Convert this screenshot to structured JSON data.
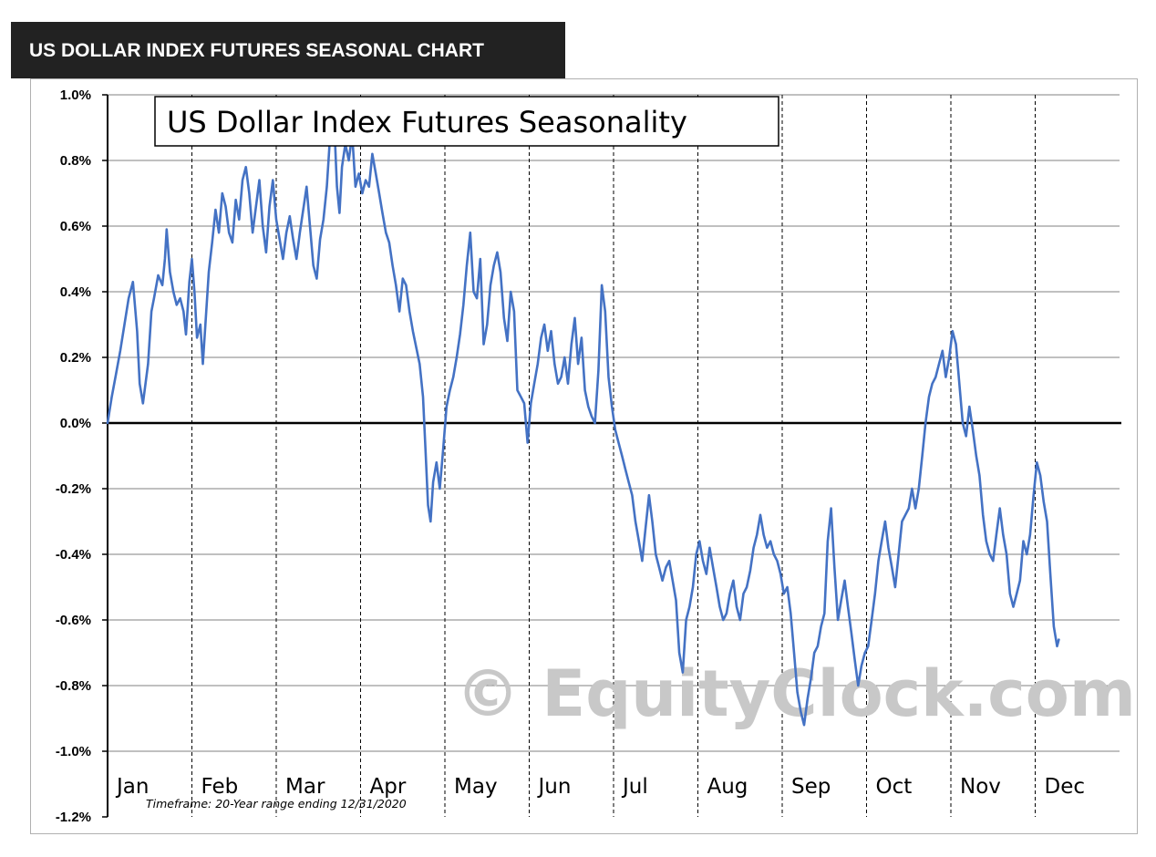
{
  "header": {
    "title": "US DOLLAR INDEX FUTURES SEASONAL CHART"
  },
  "watermark": "© EquityClock.com",
  "colors": {
    "line": "#4472c4",
    "grid": "#808080",
    "header_bg": "#222222",
    "watermark": "#c8c8c8"
  },
  "chart_data": {
    "type": "line",
    "title": "US Dollar Index Futures Seasonality",
    "footnote": "Timeframe:   20-Year range  ending  12/31/2020",
    "xlabel": "",
    "ylabel": "",
    "ylim": [
      -1.2,
      1.0
    ],
    "y_ticks": [
      1.0,
      0.8,
      0.6,
      0.4,
      0.2,
      0.0,
      -0.2,
      -0.4,
      -0.6,
      -0.8,
      -1.0,
      -1.2
    ],
    "y_tick_labels": [
      "1.0%",
      "0.8%",
      "0.6%",
      "0.4%",
      "0.2%",
      "0.0%",
      "-0.2%",
      "-0.4%",
      "-0.6%",
      "-0.8%",
      "-1.0%",
      "-1.2%"
    ],
    "months": [
      "Jan",
      "Feb",
      "Mar",
      "Apr",
      "May",
      "Jun",
      "Jul",
      "Aug",
      "Sep",
      "Oct",
      "Nov",
      "Dec"
    ],
    "x_unit": "month (0 = start of Jan, 12 = end of Dec)",
    "grid": true,
    "series": [
      {
        "values": [
          [
            0.0,
            0.0
          ],
          [
            0.05,
            0.08
          ],
          [
            0.1,
            0.15
          ],
          [
            0.15,
            0.22
          ],
          [
            0.2,
            0.3
          ],
          [
            0.25,
            0.38
          ],
          [
            0.3,
            0.43
          ],
          [
            0.35,
            0.28
          ],
          [
            0.38,
            0.12
          ],
          [
            0.42,
            0.06
          ],
          [
            0.48,
            0.18
          ],
          [
            0.52,
            0.34
          ],
          [
            0.55,
            0.38
          ],
          [
            0.6,
            0.45
          ],
          [
            0.65,
            0.42
          ],
          [
            0.68,
            0.5
          ],
          [
            0.7,
            0.59
          ],
          [
            0.74,
            0.46
          ],
          [
            0.78,
            0.4
          ],
          [
            0.82,
            0.36
          ],
          [
            0.86,
            0.38
          ],
          [
            0.9,
            0.34
          ],
          [
            0.93,
            0.27
          ],
          [
            0.97,
            0.43
          ],
          [
            1.0,
            0.5
          ],
          [
            1.03,
            0.4
          ],
          [
            1.06,
            0.26
          ],
          [
            1.1,
            0.3
          ],
          [
            1.13,
            0.18
          ],
          [
            1.16,
            0.3
          ],
          [
            1.2,
            0.46
          ],
          [
            1.24,
            0.55
          ],
          [
            1.28,
            0.65
          ],
          [
            1.32,
            0.58
          ],
          [
            1.36,
            0.7
          ],
          [
            1.4,
            0.66
          ],
          [
            1.44,
            0.58
          ],
          [
            1.48,
            0.55
          ],
          [
            1.52,
            0.68
          ],
          [
            1.56,
            0.62
          ],
          [
            1.6,
            0.74
          ],
          [
            1.64,
            0.78
          ],
          [
            1.68,
            0.7
          ],
          [
            1.72,
            0.58
          ],
          [
            1.76,
            0.66
          ],
          [
            1.8,
            0.74
          ],
          [
            1.84,
            0.6
          ],
          [
            1.88,
            0.52
          ],
          [
            1.92,
            0.66
          ],
          [
            1.96,
            0.74
          ],
          [
            2.0,
            0.62
          ],
          [
            2.04,
            0.56
          ],
          [
            2.08,
            0.5
          ],
          [
            2.12,
            0.58
          ],
          [
            2.16,
            0.63
          ],
          [
            2.2,
            0.56
          ],
          [
            2.24,
            0.5
          ],
          [
            2.28,
            0.58
          ],
          [
            2.32,
            0.65
          ],
          [
            2.36,
            0.72
          ],
          [
            2.4,
            0.6
          ],
          [
            2.44,
            0.48
          ],
          [
            2.48,
            0.44
          ],
          [
            2.52,
            0.56
          ],
          [
            2.56,
            0.62
          ],
          [
            2.6,
            0.72
          ],
          [
            2.64,
            0.88
          ],
          [
            2.68,
            0.96
          ],
          [
            2.72,
            0.72
          ],
          [
            2.75,
            0.64
          ],
          [
            2.78,
            0.78
          ],
          [
            2.82,
            0.85
          ],
          [
            2.86,
            0.8
          ],
          [
            2.9,
            0.88
          ],
          [
            2.94,
            0.72
          ],
          [
            2.98,
            0.76
          ],
          [
            3.02,
            0.7
          ],
          [
            3.06,
            0.74
          ],
          [
            3.1,
            0.72
          ],
          [
            3.14,
            0.82
          ],
          [
            3.18,
            0.76
          ],
          [
            3.22,
            0.7
          ],
          [
            3.26,
            0.64
          ],
          [
            3.3,
            0.58
          ],
          [
            3.34,
            0.55
          ],
          [
            3.38,
            0.48
          ],
          [
            3.42,
            0.42
          ],
          [
            3.46,
            0.34
          ],
          [
            3.5,
            0.44
          ],
          [
            3.54,
            0.42
          ],
          [
            3.58,
            0.34
          ],
          [
            3.62,
            0.28
          ],
          [
            3.66,
            0.23
          ],
          [
            3.7,
            0.18
          ],
          [
            3.74,
            0.08
          ],
          [
            3.77,
            -0.08
          ],
          [
            3.8,
            -0.25
          ],
          [
            3.83,
            -0.3
          ],
          [
            3.86,
            -0.18
          ],
          [
            3.9,
            -0.12
          ],
          [
            3.94,
            -0.2
          ],
          [
            3.98,
            -0.08
          ],
          [
            4.02,
            0.05
          ],
          [
            4.06,
            0.1
          ],
          [
            4.1,
            0.14
          ],
          [
            4.14,
            0.2
          ],
          [
            4.18,
            0.27
          ],
          [
            4.22,
            0.36
          ],
          [
            4.26,
            0.48
          ],
          [
            4.3,
            0.58
          ],
          [
            4.34,
            0.4
          ],
          [
            4.38,
            0.38
          ],
          [
            4.42,
            0.5
          ],
          [
            4.46,
            0.24
          ],
          [
            4.5,
            0.3
          ],
          [
            4.54,
            0.42
          ],
          [
            4.58,
            0.48
          ],
          [
            4.62,
            0.52
          ],
          [
            4.66,
            0.46
          ],
          [
            4.7,
            0.32
          ],
          [
            4.74,
            0.25
          ],
          [
            4.78,
            0.4
          ],
          [
            4.82,
            0.34
          ],
          [
            4.86,
            0.1
          ],
          [
            4.9,
            0.08
          ],
          [
            4.94,
            0.06
          ],
          [
            4.98,
            -0.06
          ],
          [
            5.02,
            0.06
          ],
          [
            5.06,
            0.12
          ],
          [
            5.1,
            0.18
          ],
          [
            5.14,
            0.26
          ],
          [
            5.18,
            0.3
          ],
          [
            5.22,
            0.22
          ],
          [
            5.26,
            0.28
          ],
          [
            5.3,
            0.18
          ],
          [
            5.34,
            0.12
          ],
          [
            5.38,
            0.14
          ],
          [
            5.42,
            0.2
          ],
          [
            5.46,
            0.12
          ],
          [
            5.5,
            0.24
          ],
          [
            5.54,
            0.32
          ],
          [
            5.58,
            0.18
          ],
          [
            5.62,
            0.26
          ],
          [
            5.66,
            0.1
          ],
          [
            5.7,
            0.05
          ],
          [
            5.74,
            0.02
          ],
          [
            5.78,
            0.0
          ],
          [
            5.82,
            0.16
          ],
          [
            5.86,
            0.42
          ],
          [
            5.9,
            0.34
          ],
          [
            5.94,
            0.14
          ],
          [
            5.98,
            0.05
          ],
          [
            6.02,
            -0.02
          ],
          [
            6.06,
            -0.06
          ],
          [
            6.1,
            -0.1
          ],
          [
            6.14,
            -0.14
          ],
          [
            6.18,
            -0.18
          ],
          [
            6.22,
            -0.22
          ],
          [
            6.26,
            -0.3
          ],
          [
            6.3,
            -0.36
          ],
          [
            6.34,
            -0.42
          ],
          [
            6.38,
            -0.32
          ],
          [
            6.42,
            -0.22
          ],
          [
            6.46,
            -0.3
          ],
          [
            6.5,
            -0.4
          ],
          [
            6.54,
            -0.44
          ],
          [
            6.58,
            -0.48
          ],
          [
            6.62,
            -0.44
          ],
          [
            6.66,
            -0.42
          ],
          [
            6.7,
            -0.48
          ],
          [
            6.74,
            -0.54
          ],
          [
            6.78,
            -0.7
          ],
          [
            6.82,
            -0.76
          ],
          [
            6.86,
            -0.6
          ],
          [
            6.9,
            -0.56
          ],
          [
            6.94,
            -0.5
          ],
          [
            6.98,
            -0.4
          ],
          [
            7.02,
            -0.36
          ],
          [
            7.06,
            -0.42
          ],
          [
            7.1,
            -0.46
          ],
          [
            7.14,
            -0.38
          ],
          [
            7.18,
            -0.44
          ],
          [
            7.22,
            -0.5
          ],
          [
            7.26,
            -0.56
          ],
          [
            7.3,
            -0.6
          ],
          [
            7.34,
            -0.58
          ],
          [
            7.38,
            -0.52
          ],
          [
            7.42,
            -0.48
          ],
          [
            7.46,
            -0.56
          ],
          [
            7.5,
            -0.6
          ],
          [
            7.54,
            -0.52
          ],
          [
            7.58,
            -0.5
          ],
          [
            7.62,
            -0.45
          ],
          [
            7.66,
            -0.38
          ],
          [
            7.7,
            -0.34
          ],
          [
            7.74,
            -0.28
          ],
          [
            7.78,
            -0.34
          ],
          [
            7.82,
            -0.38
          ],
          [
            7.86,
            -0.36
          ],
          [
            7.9,
            -0.4
          ],
          [
            7.94,
            -0.42
          ],
          [
            7.98,
            -0.46
          ],
          [
            8.02,
            -0.52
          ],
          [
            8.06,
            -0.5
          ],
          [
            8.1,
            -0.58
          ],
          [
            8.14,
            -0.7
          ],
          [
            8.18,
            -0.82
          ],
          [
            8.22,
            -0.88
          ],
          [
            8.26,
            -0.92
          ],
          [
            8.3,
            -0.84
          ],
          [
            8.34,
            -0.78
          ],
          [
            8.38,
            -0.7
          ],
          [
            8.42,
            -0.68
          ],
          [
            8.46,
            -0.62
          ],
          [
            8.5,
            -0.58
          ],
          [
            8.54,
            -0.36
          ],
          [
            8.58,
            -0.26
          ],
          [
            8.62,
            -0.44
          ],
          [
            8.66,
            -0.6
          ],
          [
            8.7,
            -0.54
          ],
          [
            8.74,
            -0.48
          ],
          [
            8.78,
            -0.56
          ],
          [
            8.82,
            -0.64
          ],
          [
            8.86,
            -0.72
          ],
          [
            8.9,
            -0.8
          ],
          [
            8.94,
            -0.74
          ],
          [
            8.98,
            -0.7
          ],
          [
            9.02,
            -0.68
          ],
          [
            9.06,
            -0.6
          ],
          [
            9.1,
            -0.52
          ],
          [
            9.14,
            -0.42
          ],
          [
            9.18,
            -0.36
          ],
          [
            9.22,
            -0.3
          ],
          [
            9.26,
            -0.38
          ],
          [
            9.3,
            -0.44
          ],
          [
            9.34,
            -0.5
          ],
          [
            9.38,
            -0.4
          ],
          [
            9.42,
            -0.3
          ],
          [
            9.46,
            -0.28
          ],
          [
            9.5,
            -0.26
          ],
          [
            9.54,
            -0.2
          ],
          [
            9.58,
            -0.26
          ],
          [
            9.62,
            -0.2
          ],
          [
            9.66,
            -0.1
          ],
          [
            9.7,
            0.0
          ],
          [
            9.74,
            0.08
          ],
          [
            9.78,
            0.12
          ],
          [
            9.82,
            0.14
          ],
          [
            9.86,
            0.18
          ],
          [
            9.9,
            0.22
          ],
          [
            9.94,
            0.14
          ],
          [
            9.98,
            0.2
          ],
          [
            10.02,
            0.28
          ],
          [
            10.06,
            0.24
          ],
          [
            10.1,
            0.12
          ],
          [
            10.14,
            0.0
          ],
          [
            10.18,
            -0.04
          ],
          [
            10.22,
            0.05
          ],
          [
            10.26,
            -0.02
          ],
          [
            10.3,
            -0.1
          ],
          [
            10.34,
            -0.16
          ],
          [
            10.38,
            -0.28
          ],
          [
            10.42,
            -0.36
          ],
          [
            10.46,
            -0.4
          ],
          [
            10.5,
            -0.42
          ],
          [
            10.54,
            -0.34
          ],
          [
            10.58,
            -0.26
          ],
          [
            10.62,
            -0.34
          ],
          [
            10.66,
            -0.4
          ],
          [
            10.7,
            -0.52
          ],
          [
            10.74,
            -0.56
          ],
          [
            10.78,
            -0.52
          ],
          [
            10.82,
            -0.48
          ],
          [
            10.86,
            -0.36
          ],
          [
            10.9,
            -0.4
          ],
          [
            10.94,
            -0.34
          ],
          [
            10.98,
            -0.22
          ],
          [
            11.02,
            -0.12
          ],
          [
            11.06,
            -0.16
          ],
          [
            11.1,
            -0.24
          ],
          [
            11.14,
            -0.3
          ],
          [
            11.18,
            -0.46
          ],
          [
            11.22,
            -0.62
          ],
          [
            11.26,
            -0.68
          ],
          [
            11.28,
            -0.66
          ]
        ]
      }
    ]
  }
}
